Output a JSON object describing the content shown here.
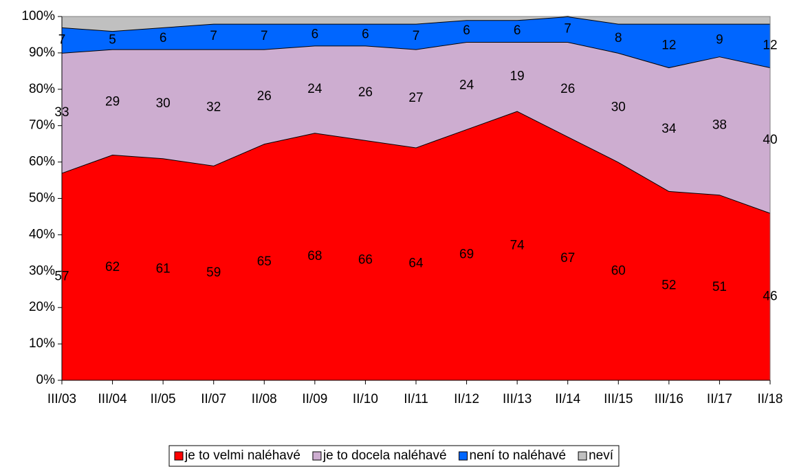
{
  "chart_data": {
    "type": "area",
    "stacked": true,
    "categories": [
      "III/03",
      "III/04",
      "II/05",
      "II/07",
      "II/08",
      "II/09",
      "II/10",
      "II/11",
      "II/12",
      "III/13",
      "II/14",
      "III/15",
      "III/16",
      "II/17",
      "II/18"
    ],
    "series": [
      {
        "name": "je to velmi naléhavé",
        "color": "#ff0000",
        "values": [
          57,
          62,
          61,
          59,
          65,
          68,
          66,
          64,
          69,
          74,
          67,
          60,
          52,
          51,
          46
        ],
        "labels": true
      },
      {
        "name": "je to docela naléhavé",
        "color": "#cdadd0",
        "values": [
          33,
          29,
          30,
          32,
          26,
          24,
          26,
          27,
          24,
          19,
          26,
          30,
          34,
          38,
          40
        ],
        "labels": true
      },
      {
        "name": "není to naléhavé",
        "color": "#0066ff",
        "values": [
          7,
          5,
          6,
          7,
          7,
          6,
          6,
          7,
          6,
          6,
          7,
          8,
          12,
          9,
          12
        ],
        "labels": true
      },
      {
        "name": "neví",
        "color": "#c0c0c0",
        "values": [
          3,
          4,
          3,
          2,
          2,
          2,
          2,
          2,
          1,
          1,
          0,
          2,
          2,
          2,
          2
        ],
        "labels": false
      }
    ],
    "ylim": [
      0,
      100
    ],
    "yticks": [
      {
        "value": 0,
        "label": "0%"
      },
      {
        "value": 10,
        "label": "10%"
      },
      {
        "value": 20,
        "label": "20%"
      },
      {
        "value": 30,
        "label": "30%"
      },
      {
        "value": 40,
        "label": "40%"
      },
      {
        "value": 50,
        "label": "50%"
      },
      {
        "value": 60,
        "label": "60%"
      },
      {
        "value": 70,
        "label": "70%"
      },
      {
        "value": 80,
        "label": "80%"
      },
      {
        "value": 90,
        "label": "90%"
      },
      {
        "value": 100,
        "label": "100%"
      }
    ],
    "legend": "bottom"
  }
}
